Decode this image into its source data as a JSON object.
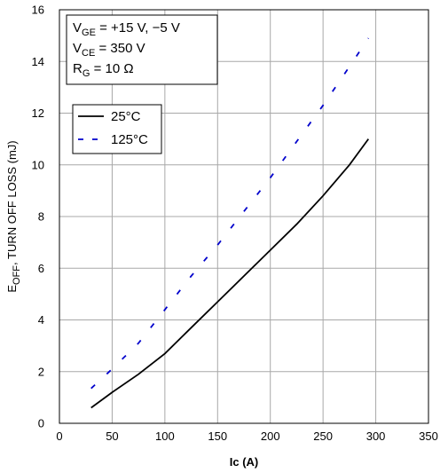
{
  "chart_data": {
    "type": "line",
    "title": "",
    "xlabel": "Ic (A)",
    "ylabel_main": "E",
    "ylabel_sub": "OFF",
    "ylabel_rest": ", TURN OFF LOSS (mJ)",
    "xlim": [
      0,
      350
    ],
    "ylim": [
      0,
      16
    ],
    "xticks": [
      0,
      50,
      100,
      150,
      200,
      250,
      300,
      350
    ],
    "yticks": [
      0,
      2,
      4,
      6,
      8,
      10,
      12,
      14,
      16
    ],
    "grid": true,
    "conditions": [
      {
        "main": "V",
        "sub": "GE",
        "rest": " = +15 V, −5 V"
      },
      {
        "main": "V",
        "sub": "CE",
        "rest": " = 350 V"
      },
      {
        "main": "R",
        "sub": "G",
        "rest": " = 10 Ω"
      }
    ],
    "legend_position": "top-left",
    "series": [
      {
        "name": "25°C",
        "style": "solid",
        "color": "#000000",
        "x": [
          30,
          50,
          75,
          100,
          125,
          150,
          175,
          200,
          225,
          250,
          275,
          293
        ],
        "y": [
          0.6,
          1.2,
          1.9,
          2.7,
          3.7,
          4.7,
          5.7,
          6.7,
          7.7,
          8.8,
          10.0,
          11.0
        ]
      },
      {
        "name": "125°C",
        "style": "dashed",
        "color": "#0000cc",
        "x": [
          30,
          50,
          75,
          100,
          125,
          150,
          175,
          200,
          225,
          250,
          275,
          293
        ],
        "y": [
          1.35,
          2.1,
          3.1,
          4.4,
          5.7,
          6.9,
          8.2,
          9.5,
          10.9,
          12.3,
          13.8,
          14.9
        ]
      }
    ]
  }
}
